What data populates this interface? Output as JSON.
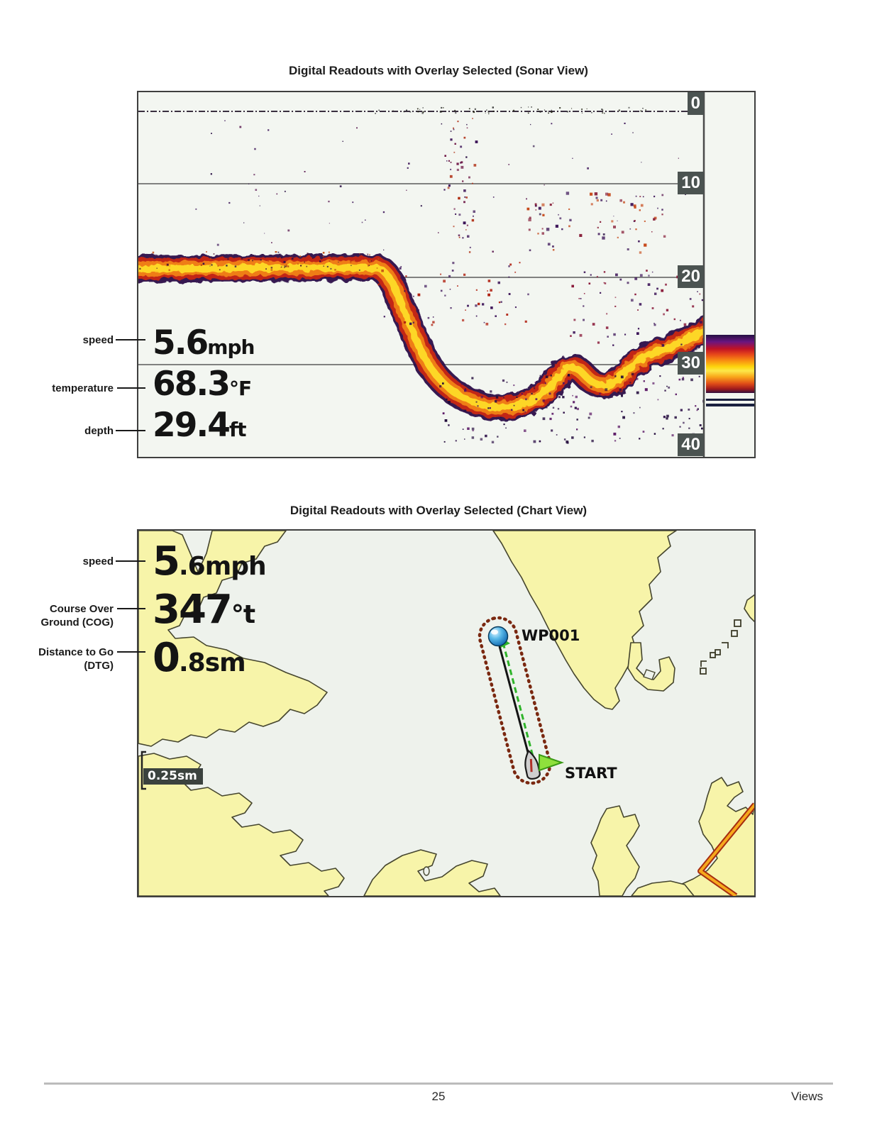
{
  "figure1": {
    "title": "Digital Readouts with Overlay Selected (Sonar View)",
    "callouts": [
      {
        "line1": "speed",
        "line2": ""
      },
      {
        "line1": "temperature",
        "line2": ""
      },
      {
        "line1": "depth",
        "line2": ""
      }
    ],
    "readouts": [
      {
        "value": "5.6",
        "unit": "mph"
      },
      {
        "value": "68.3",
        "unit": "°F"
      },
      {
        "value": "29.4",
        "unit": "ft"
      }
    ],
    "depth_scale": [
      "0",
      "10",
      "20",
      "30",
      "40"
    ]
  },
  "figure2": {
    "title": "Digital Readouts with Overlay Selected (Chart View)",
    "callouts": [
      {
        "line1": "speed",
        "line2": ""
      },
      {
        "line1": "Course Over",
        "line2": "Ground (COG)"
      },
      {
        "line1": "Distance to Go",
        "line2": "(DTG)"
      }
    ],
    "readouts": [
      {
        "int": "5",
        "frac": ".6",
        "unit": "mph"
      },
      {
        "int": "347",
        "frac": "",
        "unit": "°t"
      },
      {
        "int": "0",
        "frac": ".8",
        "unit": "sm"
      }
    ],
    "scale_label": "0.25sm",
    "waypoint_label": "WP001",
    "start_label": "START"
  },
  "footer": {
    "page_number": "25",
    "section": "Views"
  },
  "colors": {
    "land": "#f7f4a9",
    "water": "#eef2ec",
    "route_capsule": "#7a2810",
    "nav_green": "#2fb42a",
    "channel_orange": "#f6a81c",
    "badge_bg": "#4b5351",
    "sonar_bg": "#f3f6f1"
  }
}
